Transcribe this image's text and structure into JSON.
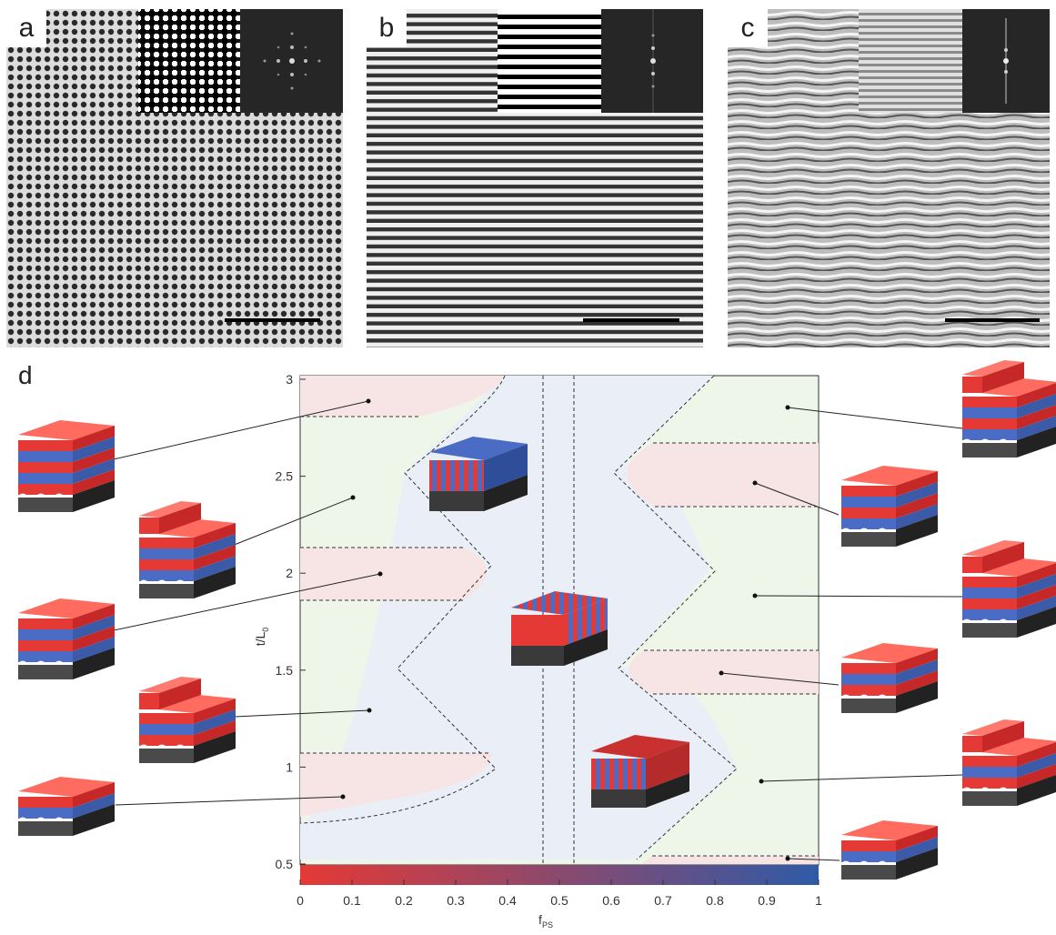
{
  "panels": [
    {
      "label": "a",
      "pattern": "dots"
    },
    {
      "label": "b",
      "pattern": "horizontal-lines"
    },
    {
      "label": "c",
      "pattern": "wavy-lines"
    }
  ],
  "diagram_label": "d",
  "phase_diagram": {
    "xlabel_main": "f",
    "xlabel_sub": "PS",
    "ylabel_main": "t/L",
    "ylabel_sub": "0",
    "xticks": [
      "0",
      "0.1",
      "0.2",
      "0.3",
      "0.4",
      "0.5",
      "0.6",
      "0.7",
      "0.8",
      "0.9",
      "1"
    ],
    "yticks": [
      "0.5",
      "1",
      "1.5",
      "2",
      "2.5",
      "3"
    ],
    "xlim": [
      0,
      1
    ],
    "ylim": [
      0.5,
      3
    ],
    "colors": {
      "red_region": "#f7e4e4",
      "green_region": "#eef5e9",
      "blue_region": "#eaeef7",
      "colorbar_start": "#e53935",
      "colorbar_end": "#2f5aa8",
      "block_red": "#e53935",
      "block_blue": "#4a6cc4",
      "substrate": "#3a3a3a"
    }
  }
}
